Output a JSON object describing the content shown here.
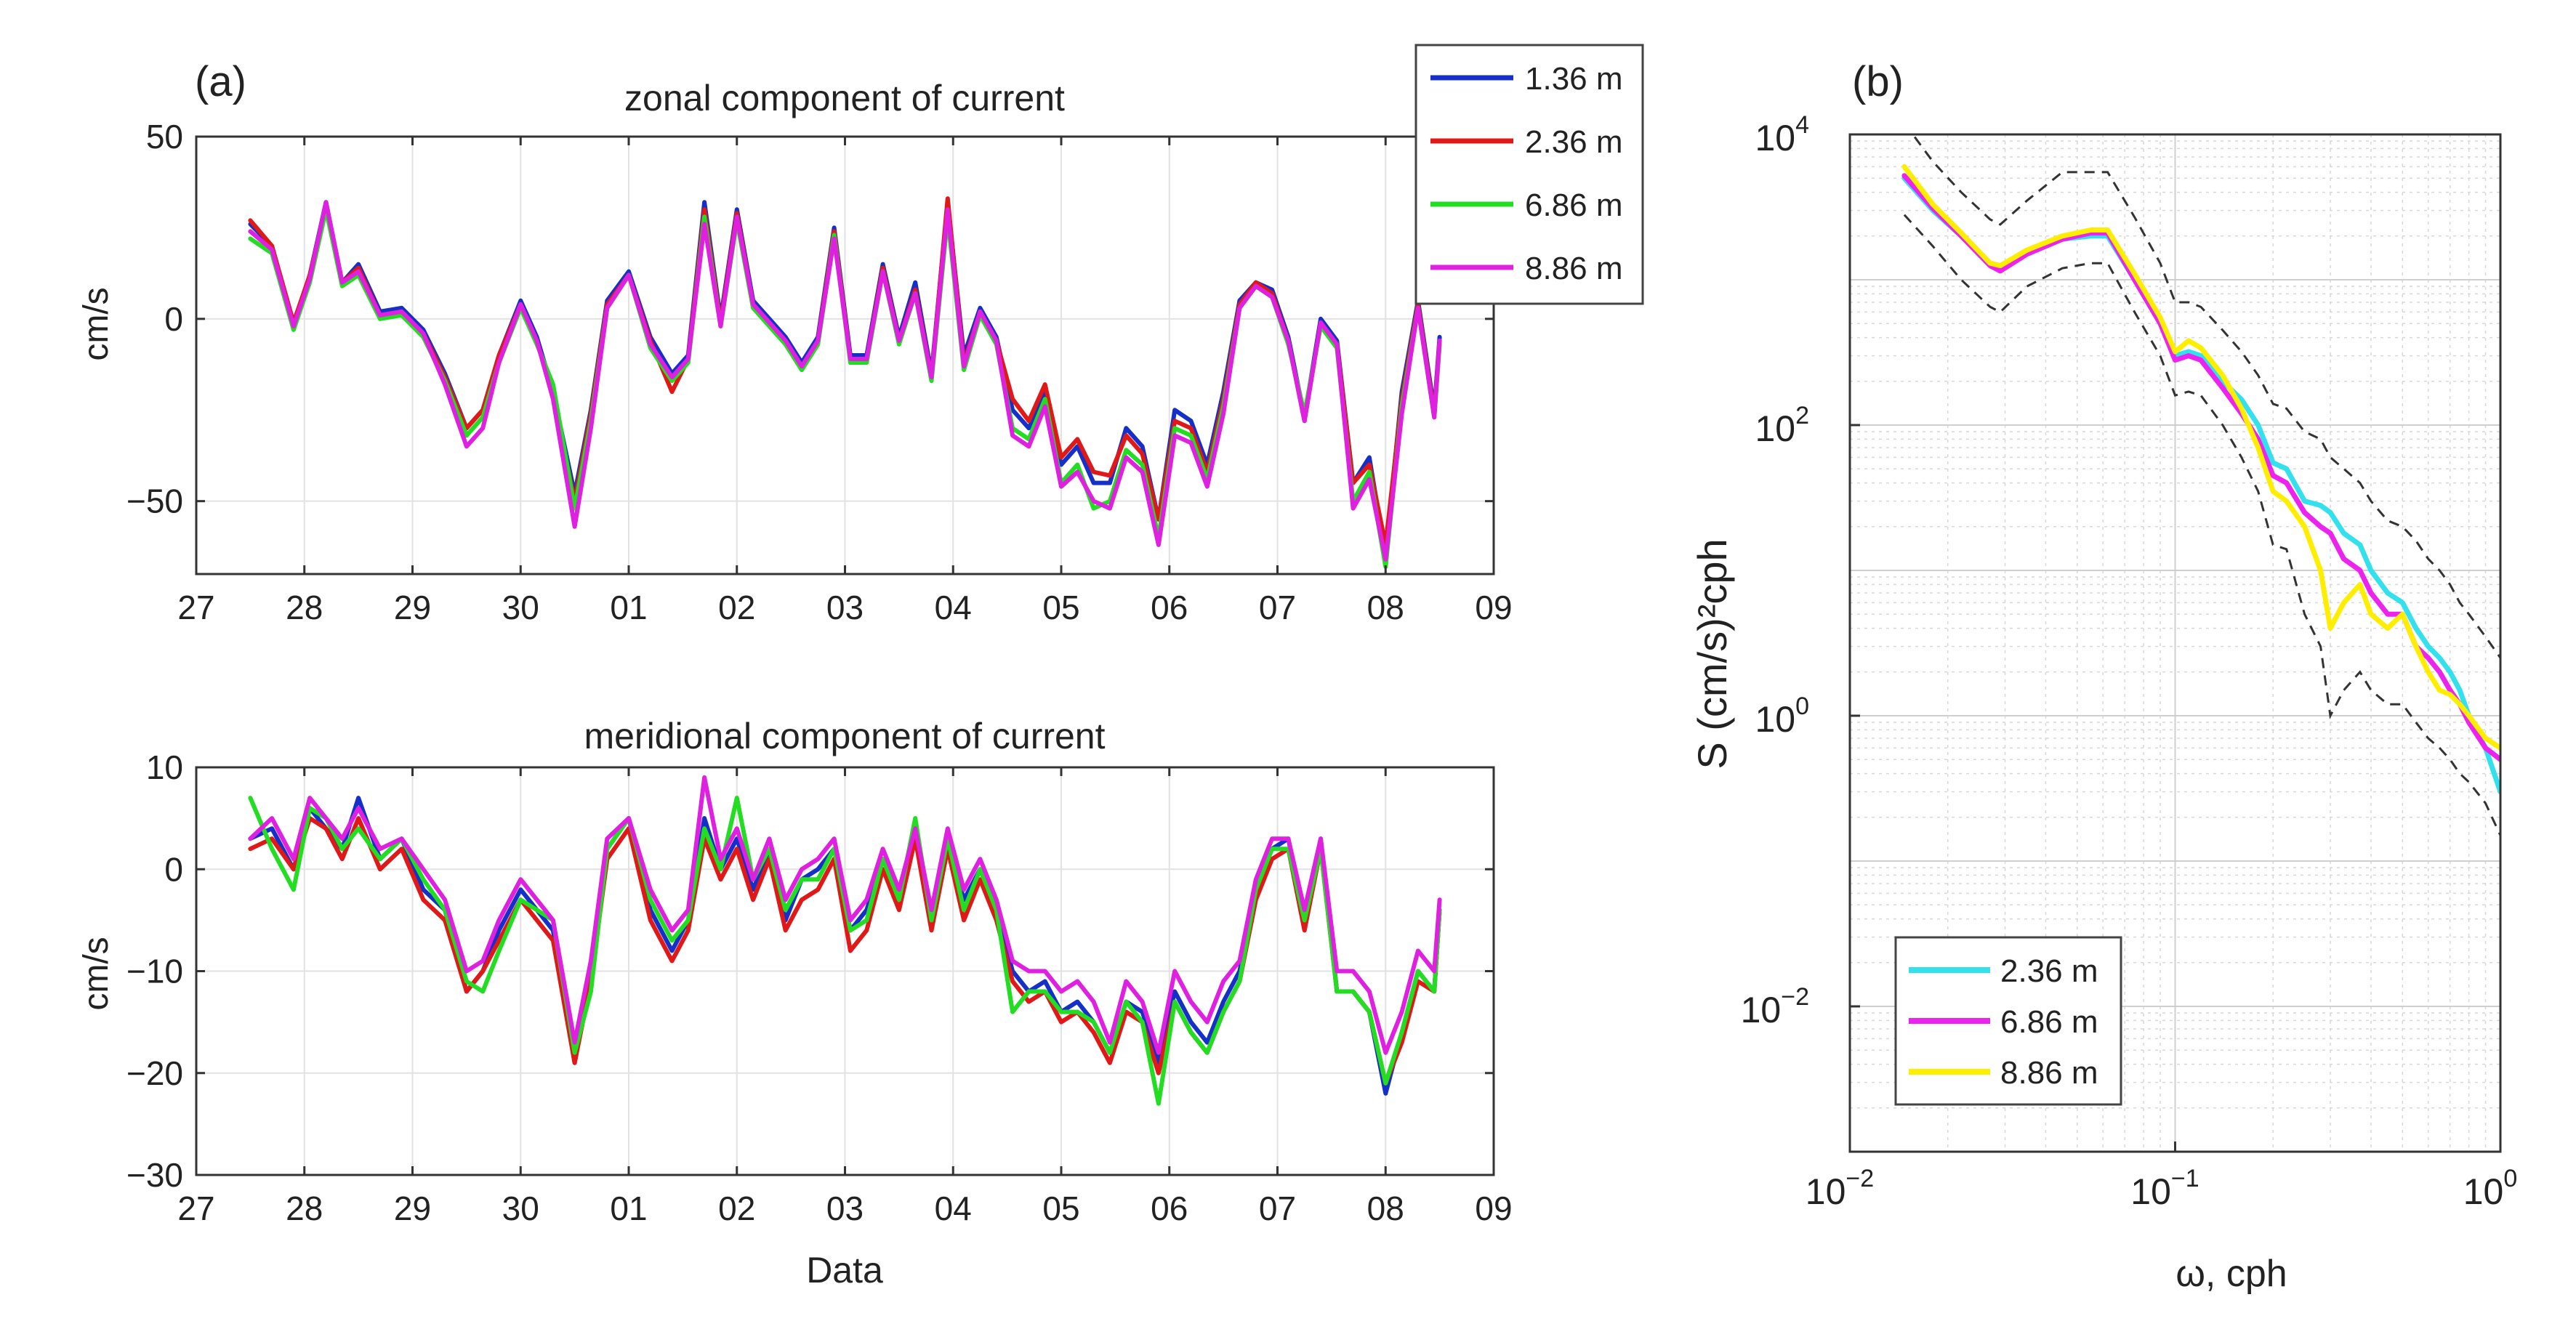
{
  "chart_data": [
    {
      "panel_label": "(a)",
      "type": "line",
      "title": "zonal component of current",
      "xlabel": "",
      "ylabel": "cm/s",
      "xlim": [
        0,
        12
      ],
      "ylim": [
        -70,
        50
      ],
      "xtick_labels": [
        "27",
        "28",
        "29",
        "30",
        "01",
        "02",
        "03",
        "04",
        "05",
        "06",
        "07",
        "08",
        "09"
      ],
      "yticks": [
        50,
        0,
        -50
      ],
      "grid": true,
      "legend_position": "top-right, outside plot area",
      "legend": [
        "1.36 m",
        "2.36 m",
        "6.86 m",
        "8.86 m"
      ],
      "x": [
        0.5,
        0.7,
        0.9,
        1.05,
        1.2,
        1.35,
        1.5,
        1.7,
        1.9,
        2.1,
        2.3,
        2.5,
        2.65,
        2.8,
        3.0,
        3.15,
        3.3,
        3.5,
        3.65,
        3.8,
        4.0,
        4.2,
        4.4,
        4.55,
        4.7,
        4.85,
        5.0,
        5.15,
        5.3,
        5.45,
        5.6,
        5.75,
        5.9,
        6.05,
        6.2,
        6.35,
        6.5,
        6.65,
        6.8,
        6.95,
        7.1,
        7.25,
        7.4,
        7.55,
        7.7,
        7.85,
        8.0,
        8.15,
        8.3,
        8.45,
        8.6,
        8.75,
        8.9,
        9.05,
        9.2,
        9.35,
        9.5,
        9.65,
        9.8,
        9.95,
        10.1,
        10.25,
        10.4,
        10.55,
        10.7,
        10.85,
        11.0,
        11.15,
        11.3,
        11.45,
        11.5
      ],
      "series": [
        {
          "name": "1.36 m",
          "color": "#1530c8",
          "values": [
            26,
            20,
            -2,
            12,
            32,
            10,
            15,
            2,
            3,
            -3,
            -15,
            -30,
            -25,
            -10,
            5,
            -5,
            -20,
            -48,
            -25,
            5,
            13,
            -5,
            -15,
            -10,
            32,
            0,
            30,
            5,
            0,
            -5,
            -12,
            -5,
            25,
            -10,
            -10,
            15,
            -5,
            10,
            -15,
            32,
            -10,
            3,
            -5,
            -25,
            -30,
            -20,
            -40,
            -35,
            -45,
            -45,
            -30,
            -35,
            -55,
            -25,
            -28,
            -40,
            -20,
            5,
            10,
            8,
            -5,
            -27,
            0,
            -6,
            -45,
            -38,
            -65,
            -20,
            5,
            -25,
            -5
          ]
        },
        {
          "name": "2.36 m",
          "color": "#e01818",
          "values": [
            27,
            20,
            -1,
            12,
            31,
            10,
            14,
            1,
            2,
            -4,
            -16,
            -30,
            -25,
            -10,
            4,
            -6,
            -21,
            -50,
            -26,
            4,
            12,
            -6,
            -20,
            -11,
            30,
            -1,
            29,
            4,
            -1,
            -6,
            -13,
            -6,
            24,
            -11,
            -11,
            14,
            -6,
            8,
            -16,
            33,
            -12,
            2,
            -6,
            -22,
            -28,
            -18,
            -38,
            -33,
            -42,
            -43,
            -32,
            -37,
            -55,
            -28,
            -30,
            -42,
            -22,
            4,
            10,
            7,
            -6,
            -28,
            -1,
            -7,
            -45,
            -40,
            -62,
            -22,
            4,
            -26,
            -6
          ]
        },
        {
          "name": "6.86 m",
          "color": "#22dd22",
          "values": [
            22,
            18,
            -3,
            10,
            30,
            9,
            12,
            0,
            1,
            -5,
            -17,
            -32,
            -27,
            -12,
            3,
            -7,
            -18,
            -52,
            -28,
            3,
            12,
            -8,
            -17,
            -12,
            28,
            -2,
            27,
            3,
            -2,
            -7,
            -14,
            -7,
            23,
            -12,
            -12,
            13,
            -7,
            7,
            -17,
            28,
            -14,
            1,
            -7,
            -30,
            -33,
            -22,
            -45,
            -40,
            -52,
            -50,
            -36,
            -40,
            -60,
            -30,
            -32,
            -44,
            -24,
            3,
            9,
            6,
            -7,
            -26,
            -2,
            -8,
            -50,
            -42,
            -68,
            -24,
            3,
            -27,
            -7
          ]
        },
        {
          "name": "8.86 m",
          "color": "#e020e0",
          "values": [
            24,
            19,
            -2,
            11,
            32,
            10,
            13,
            1,
            2,
            -4,
            -18,
            -35,
            -30,
            -12,
            4,
            -6,
            -22,
            -57,
            -30,
            3,
            12,
            -7,
            -16,
            -11,
            26,
            -2,
            28,
            4,
            -1,
            -6,
            -13,
            -6,
            22,
            -11,
            -11,
            13,
            -6,
            7,
            -16,
            30,
            -13,
            2,
            -6,
            -32,
            -35,
            -24,
            -46,
            -42,
            -50,
            -52,
            -38,
            -42,
            -62,
            -32,
            -34,
            -46,
            -26,
            3,
            9,
            6,
            -6,
            -28,
            -1,
            -7,
            -52,
            -44,
            -66,
            -26,
            3,
            -27,
            -6
          ]
        }
      ]
    },
    {
      "type": "line",
      "title": "meridional component of current",
      "xlabel": "Data",
      "ylabel": "cm/s",
      "xlim": [
        0,
        12
      ],
      "ylim": [
        -30,
        10
      ],
      "xtick_labels": [
        "27",
        "28",
        "29",
        "30",
        "01",
        "02",
        "03",
        "04",
        "05",
        "06",
        "07",
        "08",
        "09"
      ],
      "yticks": [
        10,
        0,
        -10,
        -20,
        -30
      ],
      "grid": true,
      "x": [
        0.5,
        0.7,
        0.9,
        1.05,
        1.2,
        1.35,
        1.5,
        1.7,
        1.9,
        2.1,
        2.3,
        2.5,
        2.65,
        2.8,
        3.0,
        3.15,
        3.3,
        3.5,
        3.65,
        3.8,
        4.0,
        4.2,
        4.4,
        4.55,
        4.7,
        4.85,
        5.0,
        5.15,
        5.3,
        5.45,
        5.6,
        5.75,
        5.9,
        6.05,
        6.2,
        6.35,
        6.5,
        6.65,
        6.8,
        6.95,
        7.1,
        7.25,
        7.4,
        7.55,
        7.7,
        7.85,
        8.0,
        8.15,
        8.3,
        8.45,
        8.6,
        8.75,
        8.9,
        9.05,
        9.2,
        9.35,
        9.5,
        9.65,
        9.8,
        9.95,
        10.1,
        10.25,
        10.4,
        10.55,
        10.7,
        10.85,
        11.0,
        11.15,
        11.3,
        11.45,
        11.5
      ],
      "series": [
        {
          "name": "1.36 m",
          "color": "#1530c8",
          "values": [
            3,
            4,
            0,
            6,
            4,
            2,
            7,
            1,
            3,
            -2,
            -4,
            -12,
            -10,
            -6,
            -2,
            -4,
            -6,
            -19,
            -10,
            2,
            5,
            -4,
            -8,
            -5,
            5,
            0,
            3,
            -2,
            2,
            -5,
            -1,
            0,
            2,
            -6,
            -4,
            1,
            -3,
            4,
            -5,
            3,
            -3,
            0,
            -4,
            -10,
            -12,
            -11,
            -14,
            -13,
            -15,
            -18,
            -13,
            -14,
            -19,
            -12,
            -15,
            -17,
            -13,
            -10,
            -2,
            2,
            3,
            -5,
            3,
            -12,
            -12,
            -14,
            -22,
            -16,
            -10,
            -12,
            -4
          ]
        },
        {
          "name": "2.36 m",
          "color": "#e01818",
          "values": [
            2,
            3,
            0,
            5,
            4,
            1,
            5,
            0,
            2,
            -3,
            -5,
            -12,
            -10,
            -7,
            -3,
            -5,
            -7,
            -19,
            -11,
            1,
            4,
            -5,
            -9,
            -6,
            3,
            -1,
            2,
            -3,
            1,
            -6,
            -3,
            -2,
            1,
            -8,
            -6,
            0,
            -4,
            3,
            -6,
            2,
            -5,
            -1,
            -5,
            -11,
            -13,
            -12,
            -15,
            -14,
            -16,
            -19,
            -14,
            -15,
            -20,
            -13,
            -16,
            -18,
            -14,
            -11,
            -3,
            1,
            2,
            -6,
            2,
            -12,
            -12,
            -14,
            -21,
            -17,
            -11,
            -12,
            -4
          ]
        },
        {
          "name": "6.86 m",
          "color": "#22dd22",
          "values": [
            7,
            2,
            -2,
            6,
            5,
            2,
            4,
            1,
            3,
            -1,
            -4,
            -11,
            -12,
            -8,
            -3,
            -4,
            -5,
            -18,
            -12,
            2,
            5,
            -3,
            -7,
            -5,
            4,
            0,
            7,
            -1,
            2,
            -4,
            -1,
            -1,
            2,
            -6,
            -5,
            1,
            -3,
            5,
            -5,
            3,
            -4,
            0,
            -4,
            -14,
            -12,
            -12,
            -14,
            -14,
            -15,
            -18,
            -13,
            -15,
            -23,
            -13,
            -16,
            -18,
            -14,
            -11,
            -2,
            2,
            2,
            -5,
            2,
            -12,
            -12,
            -14,
            -21,
            -16,
            -10,
            -12,
            -4
          ]
        },
        {
          "name": "8.86 m",
          "color": "#e020e0",
          "values": [
            3,
            5,
            1,
            7,
            5,
            3,
            6,
            2,
            3,
            0,
            -3,
            -10,
            -9,
            -5,
            -1,
            -3,
            -5,
            -17,
            -9,
            3,
            5,
            -2,
            -6,
            -4,
            9,
            1,
            4,
            -1,
            3,
            -3,
            0,
            1,
            3,
            -5,
            -3,
            2,
            -2,
            4,
            -4,
            4,
            -2,
            1,
            -3,
            -9,
            -10,
            -10,
            -12,
            -11,
            -13,
            -17,
            -11,
            -13,
            -18,
            -10,
            -13,
            -15,
            -11,
            -9,
            -1,
            3,
            3,
            -4,
            3,
            -10,
            -10,
            -12,
            -18,
            -14,
            -8,
            -10,
            -3
          ]
        }
      ]
    },
    {
      "panel_label": "(b)",
      "type": "line",
      "title": "",
      "xlabel": "ω, cph",
      "ylabel": "S (cm/s)²cph",
      "xscale": "log",
      "yscale": "log",
      "xlim": [
        0.01,
        1
      ],
      "ylim": [
        0.001,
        10000
      ],
      "xtick_labels": [
        [
          "10",
          "-2"
        ],
        [
          "10",
          "-1"
        ],
        [
          "10",
          "0"
        ]
      ],
      "ytick_labels": [
        [
          "10",
          "4"
        ],
        [
          "10",
          "2"
        ],
        [
          "10",
          "0"
        ],
        [
          "10",
          "-2"
        ]
      ],
      "grid": true,
      "legend_position": "bottom-left",
      "legend": [
        "2.36 m",
        "6.86 m",
        "8.86 m"
      ],
      "x": [
        0.0147,
        0.018,
        0.022,
        0.027,
        0.029,
        0.035,
        0.045,
        0.055,
        0.062,
        0.075,
        0.09,
        0.1,
        0.11,
        0.12,
        0.14,
        0.16,
        0.18,
        0.2,
        0.22,
        0.25,
        0.28,
        0.3,
        0.33,
        0.37,
        0.4,
        0.45,
        0.5,
        0.55,
        0.6,
        0.65,
        0.7,
        0.75,
        0.8,
        0.9,
        1.0
      ],
      "series": [
        {
          "name": "2.36 m",
          "color": "#33e0ee",
          "values": [
            5000,
            3000,
            2000,
            1300,
            1200,
            1500,
            1900,
            2000,
            2000,
            1000,
            500,
            300,
            320,
            300,
            200,
            150,
            100,
            55,
            50,
            30,
            28,
            25,
            18,
            15,
            10,
            7,
            6,
            4,
            3,
            2.5,
            2,
            1.5,
            1,
            0.6,
            0.3
          ]
        },
        {
          "name": "6.86 m",
          "color": "#ee22ee",
          "values": [
            5200,
            3100,
            2000,
            1250,
            1150,
            1500,
            1900,
            2100,
            2100,
            1000,
            500,
            280,
            300,
            280,
            180,
            120,
            80,
            45,
            40,
            25,
            20,
            18,
            12,
            10,
            7,
            5,
            5,
            3,
            2.5,
            2,
            1.5,
            1.2,
            0.9,
            0.6,
            0.5
          ]
        },
        {
          "name": "8.86 m",
          "color": "#ffee00",
          "values": [
            6000,
            3300,
            2100,
            1300,
            1250,
            1600,
            2000,
            2200,
            2200,
            1100,
            550,
            320,
            380,
            340,
            220,
            130,
            70,
            35,
            30,
            20,
            10,
            4,
            6,
            8,
            5,
            4,
            5,
            3,
            2,
            1.5,
            1.4,
            1.2,
            1,
            0.7,
            0.6
          ]
        }
      ],
      "confidence_bounds": {
        "upper": [
          12000,
          6500,
          4000,
          2600,
          2400,
          3500,
          5500,
          5500,
          5500,
          2700,
          1300,
          700,
          700,
          650,
          450,
          320,
          220,
          140,
          130,
          90,
          80,
          60,
          50,
          40,
          30,
          22,
          20,
          16,
          12,
          10,
          8,
          6,
          5,
          3.5,
          2.5
        ],
        "lower": [
          2800,
          1700,
          1000,
          650,
          600,
          900,
          1200,
          1300,
          1300,
          600,
          300,
          160,
          170,
          160,
          100,
          60,
          35,
          15,
          14,
          5,
          3,
          1,
          1.5,
          2,
          1.5,
          1.2,
          1.2,
          0.9,
          0.7,
          0.6,
          0.5,
          0.4,
          0.35,
          0.25,
          0.15
        ]
      }
    }
  ]
}
